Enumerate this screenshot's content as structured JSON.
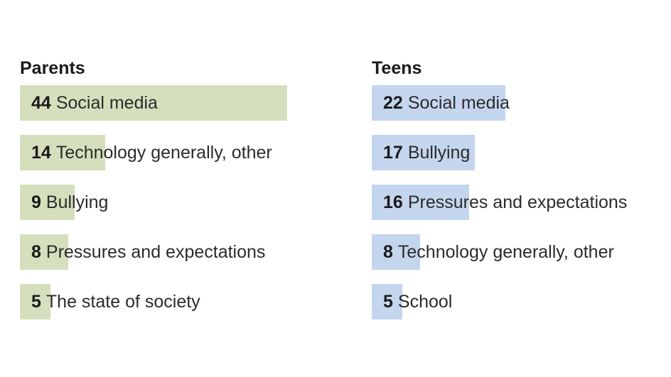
{
  "colors": {
    "parents_bar": "#d6dfbd",
    "teens_bar": "#c4d6ee"
  },
  "chart_data": [
    {
      "type": "bar",
      "title": "Parents",
      "xlim": [
        0,
        44
      ],
      "categories": [
        "Social media",
        "Technology generally, other",
        "Bullying",
        "Pressures and expectations",
        "The state of society"
      ],
      "values": [
        44,
        14,
        9,
        8,
        5
      ]
    },
    {
      "type": "bar",
      "title": "Teens",
      "xlim": [
        0,
        44
      ],
      "categories": [
        "Social media",
        "Bullying",
        "Pressures and expectations",
        "Technology generally, other",
        "School"
      ],
      "values": [
        22,
        17,
        16,
        8,
        5
      ]
    }
  ]
}
